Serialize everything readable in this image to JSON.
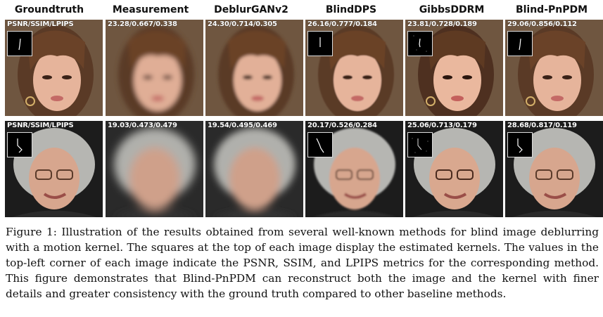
{
  "columns": [
    "Groundtruth",
    "Measurement",
    "DeblurGANv2",
    "BlindDPS",
    "GibbsDDRM",
    "Blind-PnPDM"
  ],
  "rows": [
    {
      "subject": "woman-brown-hair",
      "metrics": [
        "PSNR/SSIM/LPIPS",
        "23.28/0.667/0.338",
        "24.30/0.714/0.305",
        "26.16/0.777/0.184",
        "23.81/0.728/0.189",
        "29.06/0.856/0.112"
      ]
    },
    {
      "subject": "elderly-woman-glasses",
      "metrics": [
        "PSNR/SSIM/LPIPS",
        "19.03/0.473/0.479",
        "19.54/0.495/0.469",
        "20.17/0.526/0.284",
        "25.06/0.713/0.179",
        "28.68/0.817/0.119"
      ]
    }
  ],
  "caption": "Figure 1: Illustration of the results obtained from several well-known methods for blind image deblurring with a motion kernel. The squares at the top of each image display the estimated kernels. The values in the top-left corner of each image indicate the PSNR, SSIM, and LPIPS metrics for the corresponding method. This figure demonstrates that Blind-PnPDM can reconstruct both the image and the kernel with finer details and greater consistency with the ground truth compared to other baseline methods.",
  "colors": {
    "text": "#111111",
    "metric_text": "#ffffff",
    "kernel_bg": "#000000"
  }
}
